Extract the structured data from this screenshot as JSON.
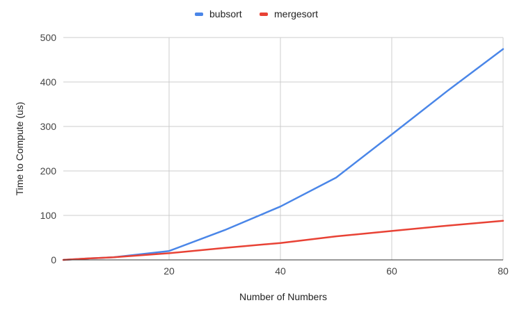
{
  "chart_data": {
    "type": "line",
    "title": "",
    "xlabel": "Number of Numbers",
    "ylabel": "Time to Compute (us)",
    "xlim": [
      1,
      80
    ],
    "ylim": [
      0,
      500
    ],
    "x_ticks": [
      20,
      40,
      60,
      80
    ],
    "y_ticks": [
      0,
      100,
      200,
      300,
      400,
      500
    ],
    "grid": true,
    "legend_position": "top",
    "series": [
      {
        "name": "bubsort",
        "color": "#4a86e8",
        "points": [
          [
            1,
            0
          ],
          [
            5,
            3
          ],
          [
            7,
            4
          ],
          [
            10,
            6
          ],
          [
            20,
            20
          ],
          [
            30,
            67
          ],
          [
            40,
            120
          ],
          [
            50,
            185
          ],
          [
            60,
            282
          ],
          [
            70,
            380
          ],
          [
            80,
            474
          ]
        ]
      },
      {
        "name": "mergesort",
        "color": "#e84235",
        "points": [
          [
            1,
            0
          ],
          [
            5,
            3
          ],
          [
            7,
            4
          ],
          [
            10,
            6
          ],
          [
            20,
            15
          ],
          [
            30,
            27
          ],
          [
            40,
            38
          ],
          [
            50,
            53
          ],
          [
            60,
            65
          ],
          [
            70,
            77
          ],
          [
            80,
            88
          ]
        ]
      }
    ]
  }
}
